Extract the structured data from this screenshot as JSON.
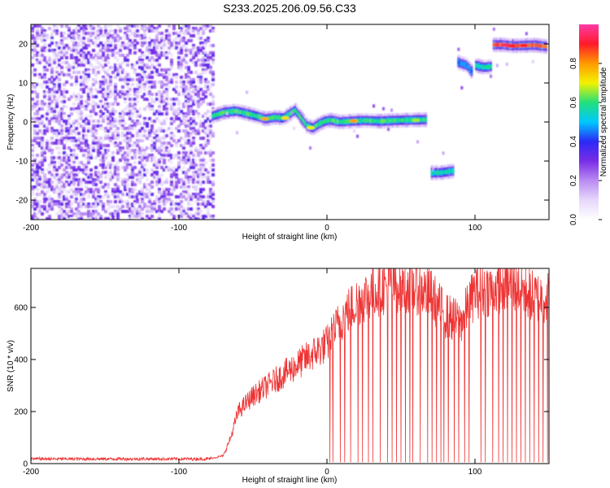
{
  "figure": {
    "title": "S233.2025.206.09.56.C33"
  },
  "colors": {
    "snr_line": "#ee3333",
    "colormap": [
      "#ffffff",
      "#e6d8fb",
      "#b98cf2",
      "#7a2de6",
      "#2a2af5",
      "#00c8ff",
      "#22e07a",
      "#f2f200",
      "#ff9a00",
      "#ff1a2a",
      "#ff3aa8"
    ]
  },
  "chart_data": [
    {
      "type": "heatmap",
      "xlabel": "Height of straight line (km)",
      "ylabel": "Frequency (Hz)",
      "xlim": [
        -200,
        150
      ],
      "ylim": [
        -25,
        25
      ],
      "xticks": [
        -200,
        -100,
        0,
        100
      ],
      "xtick_labels": [
        "-200",
        "-100",
        "0",
        "100"
      ],
      "yticks": [
        -20,
        -10,
        0,
        10,
        20
      ],
      "ytick_labels": [
        "-20",
        "-10",
        "0",
        "10",
        "20"
      ],
      "colorbar": {
        "label": "Normalized spectral amplitude",
        "range": [
          0,
          1
        ],
        "ticks": [
          0,
          0.2,
          0.4,
          0.6,
          0.8
        ],
        "tick_labels": [
          "0.0",
          "0.2",
          "0.4",
          "0.6",
          "0.8"
        ]
      },
      "noise_region": {
        "x": [
          -200,
          -78
        ],
        "amplitude": [
          0.05,
          0.35
        ]
      },
      "ridges": [
        {
          "x": [
            -78,
            -70,
            -62,
            -55,
            -48,
            -42,
            -36,
            -30,
            -26,
            -22,
            -18,
            -14,
            -10,
            -6,
            -2,
            2,
            8,
            15,
            25,
            35,
            45,
            55,
            66
          ],
          "freq": [
            1.5,
            2.5,
            2.8,
            2.2,
            1.5,
            0.8,
            1.2,
            1.0,
            2.0,
            3.0,
            1.0,
            -1.0,
            -1.5,
            -0.5,
            0.2,
            0.5,
            0.0,
            0.2,
            0.4,
            0.2,
            0.4,
            0.5,
            0.6
          ],
          "amplitude": 0.6
        },
        {
          "x": [
            69,
            72,
            76,
            80,
            85
          ],
          "freq": [
            -13,
            -13,
            -13,
            -12.8,
            -12.5
          ],
          "amplitude": 0.55
        },
        {
          "x": [
            87,
            90,
            94,
            97
          ],
          "freq": [
            15.5,
            15.0,
            14.5,
            13.0
          ],
          "amplitude": 0.45
        },
        {
          "x": [
            100,
            103,
            106,
            110
          ],
          "freq": [
            14.5,
            14.2,
            14.0,
            14.2
          ],
          "amplitude": 0.55
        },
        {
          "x": [
            112,
            118,
            125,
            132,
            140,
            148
          ],
          "freq": [
            19.8,
            19.8,
            19.5,
            19.6,
            19.7,
            19.3
          ],
          "amplitude": 0.85
        }
      ],
      "hot_spots": [
        {
          "x": -42,
          "freq": 0.8,
          "amplitude": 0.78
        },
        {
          "x": -28,
          "freq": 1.0,
          "amplitude": 0.72
        },
        {
          "x": -11,
          "freq": -1.5,
          "amplitude": 0.7
        },
        {
          "x": 18,
          "freq": 0.3,
          "amplitude": 0.8
        },
        {
          "x": 60,
          "freq": 0.4,
          "amplitude": 0.66
        },
        {
          "x": 120,
          "freq": 19.7,
          "amplitude": 0.95
        },
        {
          "x": 125,
          "freq": 19.5,
          "amplitude": 0.9
        },
        {
          "x": 133,
          "freq": 19.6,
          "amplitude": 0.9
        }
      ]
    },
    {
      "type": "line",
      "xlabel": "Height of straight line (km)",
      "ylabel": "SNR (10 * v/v)",
      "xlim": [
        -200,
        150
      ],
      "ylim": [
        0,
        750
      ],
      "xticks": [
        -200,
        -100,
        0,
        100
      ],
      "xtick_labels": [
        "-200",
        "-100",
        "0",
        "100"
      ],
      "yticks": [
        0,
        200,
        400,
        600
      ],
      "ytick_labels": [
        "0",
        "200",
        "400",
        "600"
      ],
      "series": [
        {
          "x": [
            -200,
            -150,
            -100,
            -80,
            -70,
            -65,
            -60,
            -50,
            -40,
            -30,
            -20,
            -10,
            0,
            10,
            20,
            30,
            40,
            50,
            60,
            70,
            80,
            90,
            100,
            110,
            120,
            130,
            140,
            150
          ],
          "values": [
            18,
            18,
            18,
            18,
            30,
            100,
            200,
            260,
            300,
            340,
            380,
            420,
            460,
            560,
            620,
            660,
            680,
            690,
            680,
            650,
            570,
            540,
            660,
            670,
            690,
            680,
            640,
            640
          ],
          "dropout_x": [
            2,
            4,
            9,
            12,
            16,
            21,
            24,
            28,
            31,
            36,
            41,
            44,
            47,
            50,
            53,
            56,
            58,
            63,
            68,
            71,
            74,
            77,
            79,
            82,
            86,
            89,
            93,
            96,
            104,
            107,
            112,
            116,
            119,
            122,
            125,
            128,
            131,
            134,
            137,
            140,
            143,
            146,
            149
          ],
          "noise": {
            "before_-78": 6,
            "after_-78": 0.16
          }
        }
      ]
    }
  ]
}
